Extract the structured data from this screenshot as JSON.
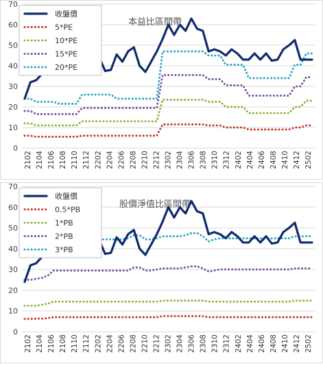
{
  "chart_data": [
    {
      "type": "line",
      "title": "本益比區間帶",
      "ylim": [
        0,
        70
      ],
      "yticks": [
        0,
        10,
        20,
        30,
        40,
        50,
        60,
        70
      ],
      "x_tick_labels": [
        "2102",
        "2104",
        "2106",
        "2108",
        "2110",
        "2112",
        "2202",
        "2204",
        "2206",
        "2208",
        "2210",
        "2212",
        "2302",
        "2304",
        "2306",
        "2308",
        "2310",
        "2312",
        "2402",
        "2404",
        "2406",
        "2408",
        "2410",
        "2412",
        "2502"
      ],
      "legend_position": "top-left",
      "series": [
        {
          "name": "收盤價",
          "color": "#0f2a6e",
          "style": "solid",
          "values": [
            24,
            32,
            33,
            36,
            37,
            44,
            44,
            44,
            45,
            46,
            48,
            46,
            43,
            44,
            37.5,
            38,
            45.5,
            42,
            47,
            49,
            40,
            37,
            42,
            47,
            53,
            60,
            55,
            60,
            57,
            63,
            58,
            57,
            47,
            48,
            47,
            45,
            48,
            46,
            43,
            43,
            46,
            43,
            46,
            42.5,
            43,
            48,
            50,
            52.5,
            43,
            43,
            43
          ]
        },
        {
          "name": "5*PE",
          "color": "#c0392b",
          "style": "dotted",
          "values": [
            6,
            6,
            5.5,
            5.5,
            5.5,
            5.5,
            5.5,
            5.5,
            5.5,
            5.5,
            6,
            6,
            6,
            6,
            6,
            6,
            6,
            6,
            6,
            6,
            6,
            6,
            6,
            6,
            11.5,
            11.5,
            11.5,
            11.5,
            11.5,
            11.5,
            11.5,
            11.5,
            11,
            11,
            11,
            10,
            10,
            10,
            10,
            9,
            9,
            9,
            9,
            9,
            9,
            9,
            9,
            10,
            10,
            11,
            11
          ]
        },
        {
          "name": "10*PE",
          "color": "#8db33a",
          "style": "dotted",
          "values": [
            12,
            12,
            11,
            11,
            11,
            11,
            11,
            11,
            11,
            11,
            13,
            13,
            13,
            13,
            13,
            13,
            13,
            13,
            13,
            13,
            13,
            13,
            13,
            13,
            23.5,
            23.5,
            23.5,
            23.5,
            23.5,
            23.5,
            23.5,
            23.5,
            22.5,
            22.5,
            22.5,
            20,
            20,
            20,
            20,
            17,
            17,
            17,
            17,
            17,
            17,
            17,
            17,
            20,
            20,
            23,
            23
          ]
        },
        {
          "name": "15*PE",
          "color": "#7b4fa6",
          "style": "dotted",
          "values": [
            18,
            18,
            16.5,
            16.5,
            16.5,
            16.5,
            16.5,
            16.5,
            16.5,
            16.5,
            19.5,
            19.5,
            19.5,
            19.5,
            19.5,
            19.5,
            19.5,
            19.5,
            19.5,
            19.5,
            19.5,
            19.5,
            19.5,
            19.5,
            35.5,
            35.5,
            35.5,
            35.5,
            35.5,
            35.5,
            35.5,
            35.5,
            33.5,
            33.5,
            33.5,
            30.5,
            30.5,
            30.5,
            30.5,
            25.5,
            25.5,
            25.5,
            25.5,
            25.5,
            25.5,
            25.5,
            25.5,
            30,
            30,
            34.5,
            34.5
          ]
        },
        {
          "name": "20*PE",
          "color": "#2aa5c6",
          "style": "dotted",
          "values": [
            24,
            24,
            22.5,
            22.5,
            22.5,
            22.5,
            21.5,
            21.5,
            21.5,
            21.5,
            26,
            26,
            26,
            26,
            26,
            26,
            24,
            24,
            24,
            24,
            24,
            24,
            24,
            24,
            47,
            47,
            47,
            47,
            47,
            47,
            47,
            47,
            45,
            45,
            45,
            40.5,
            40.5,
            40.5,
            40.5,
            34,
            34,
            34,
            34,
            34,
            34,
            34,
            34,
            40.5,
            40.5,
            46,
            46
          ]
        }
      ]
    },
    {
      "type": "line",
      "title": "股價淨值比區間帶",
      "ylim": [
        0,
        70
      ],
      "yticks": [
        0,
        10,
        20,
        30,
        40,
        50,
        60,
        70
      ],
      "x_tick_labels": [
        "2102",
        "2104",
        "2106",
        "2108",
        "2110",
        "2112",
        "2202",
        "2204",
        "2206",
        "2208",
        "2210",
        "2212",
        "2302",
        "2304",
        "2306",
        "2308",
        "2310",
        "2312",
        "2402",
        "2404",
        "2406",
        "2408",
        "2410",
        "2412",
        "2502"
      ],
      "legend_position": "top-left",
      "series": [
        {
          "name": "收盤價",
          "color": "#0f2a6e",
          "style": "solid",
          "values": [
            24,
            32,
            33,
            36,
            37,
            44,
            44,
            44,
            45,
            46,
            48,
            46,
            43,
            44,
            37.5,
            38,
            45.5,
            42,
            47,
            49,
            40,
            37,
            42,
            47,
            53,
            60,
            55,
            60,
            57,
            63,
            58,
            57,
            47,
            48,
            47,
            45,
            48,
            46,
            43,
            43,
            46,
            43,
            46,
            42.5,
            43,
            48,
            50,
            52.5,
            43,
            43,
            43
          ]
        },
        {
          "name": "0.5*PB",
          "color": "#c0392b",
          "style": "dotted",
          "values": [
            6.2,
            6.2,
            6.3,
            6.3,
            6.5,
            7,
            7,
            7,
            7,
            7,
            7,
            7,
            7,
            7,
            7,
            7,
            7,
            7,
            7,
            7,
            7,
            7,
            7,
            7,
            7.5,
            7.5,
            7.5,
            7.5,
            7.5,
            7.5,
            7.5,
            7.5,
            7,
            7,
            7,
            7,
            7,
            7,
            7,
            7,
            7,
            7,
            7,
            7,
            7,
            7,
            7,
            7,
            7,
            7,
            7
          ]
        },
        {
          "name": "1*PB",
          "color": "#8db33a",
          "style": "dotted",
          "values": [
            12.5,
            12.5,
            12.5,
            13,
            13.5,
            14.5,
            14.5,
            14.5,
            14.5,
            14.5,
            14.5,
            14.5,
            14.5,
            14.5,
            14.5,
            14.5,
            14.5,
            14.5,
            14.5,
            14.5,
            14.5,
            14.5,
            14.5,
            14.5,
            15,
            15,
            15,
            15,
            15,
            15,
            15,
            15,
            14.5,
            14.5,
            14.5,
            14.5,
            14.5,
            14.5,
            14.5,
            14.5,
            14.5,
            14.5,
            14.5,
            14.5,
            14.5,
            14.5,
            14.5,
            15,
            15,
            15,
            15
          ]
        },
        {
          "name": "2*PB",
          "color": "#7b4fa6",
          "style": "dotted",
          "values": [
            25,
            25,
            25.5,
            26,
            27,
            29.5,
            29.5,
            29.5,
            29.5,
            29.5,
            29.5,
            29.5,
            29.5,
            29.5,
            29.5,
            29.5,
            29.5,
            29.5,
            29.5,
            31,
            31,
            29.5,
            29.5,
            30,
            30.5,
            30.5,
            30.5,
            30.5,
            31,
            31.5,
            31.5,
            30.5,
            29,
            29.5,
            30,
            30,
            30,
            30,
            30,
            30,
            30,
            30,
            30,
            30,
            30,
            30,
            30,
            30.5,
            30.5,
            30.5,
            30.5
          ]
        },
        {
          "name": "3*PB",
          "color": "#2aa5c6",
          "style": "dotted",
          "values": [
            37.5,
            37.5,
            38,
            39,
            40.5,
            44.5,
            44.5,
            44.5,
            44.5,
            44.5,
            44.5,
            44.5,
            44.5,
            44.5,
            44.5,
            44.5,
            44.5,
            44.5,
            45,
            46.5,
            46.5,
            44.5,
            44.5,
            45,
            46,
            46,
            46,
            46,
            46.5,
            47.5,
            47.5,
            46,
            43.5,
            44.5,
            45,
            45,
            45,
            45,
            45,
            45,
            45,
            45,
            45,
            45,
            45,
            45,
            45,
            46,
            46,
            46,
            46
          ]
        }
      ]
    }
  ]
}
